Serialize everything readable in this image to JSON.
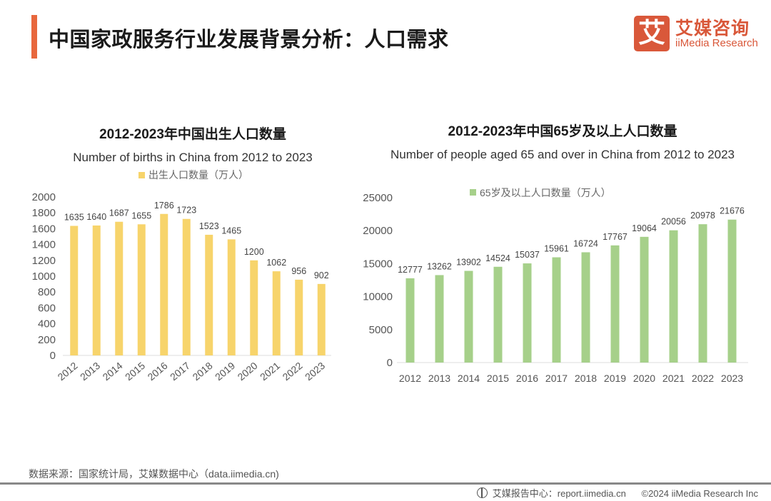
{
  "header": {
    "title": "中国家政服务行业发展背景分析：人口需求",
    "logo_char": "艾",
    "logo_cn": "艾媒咨询",
    "logo_en": "iiMedia Research",
    "accent_color": "#e8673d"
  },
  "chart_data": [
    {
      "type": "bar",
      "title": "2012-2023年中国出生人口数量",
      "subtitle": "Number of births in China from 2012 to 2023",
      "legend": "出生人口数量（万人）",
      "legend_position": "top-center",
      "color": "#f7d46b",
      "categories": [
        "2012",
        "2013",
        "2014",
        "2015",
        "2016",
        "2017",
        "2018",
        "2019",
        "2020",
        "2021",
        "2022",
        "2023"
      ],
      "values": [
        1635,
        1640,
        1687,
        1655,
        1786,
        1723,
        1523,
        1465,
        1200,
        1062,
        956,
        902
      ],
      "xlabel": "",
      "ylabel": "",
      "ylim": [
        0,
        2000
      ],
      "yticks": [
        0,
        200,
        400,
        600,
        800,
        1000,
        1200,
        1400,
        1600,
        1800,
        2000
      ],
      "x_tick_rotation": "diagonal",
      "grid": false
    },
    {
      "type": "bar",
      "title": "2012-2023年中国65岁及以上人口数量",
      "subtitle": "Number of people aged 65 and over in China from 2012 to 2023",
      "legend": "65岁及以上人口数量（万人）",
      "legend_position": "top-center",
      "color": "#a6d08a",
      "categories": [
        "2012",
        "2013",
        "2014",
        "2015",
        "2016",
        "2017",
        "2018",
        "2019",
        "2020",
        "2021",
        "2022",
        "2023"
      ],
      "values": [
        12777,
        13262,
        13902,
        14524,
        15037,
        15961,
        16724,
        17767,
        19064,
        20056,
        20978,
        21676
      ],
      "xlabel": "",
      "ylabel": "",
      "ylim": [
        0,
        25000
      ],
      "yticks": [
        0,
        5000,
        10000,
        15000,
        20000,
        25000
      ],
      "x_tick_rotation": "horizontal",
      "grid": false
    }
  ],
  "footer": {
    "source": "数据来源：国家统计局，艾媒数据中心（data.iimedia.cn)",
    "report_center": "艾媒报告中心：report.iimedia.cn",
    "copyright": "©2024  iiMedia Research  Inc"
  }
}
